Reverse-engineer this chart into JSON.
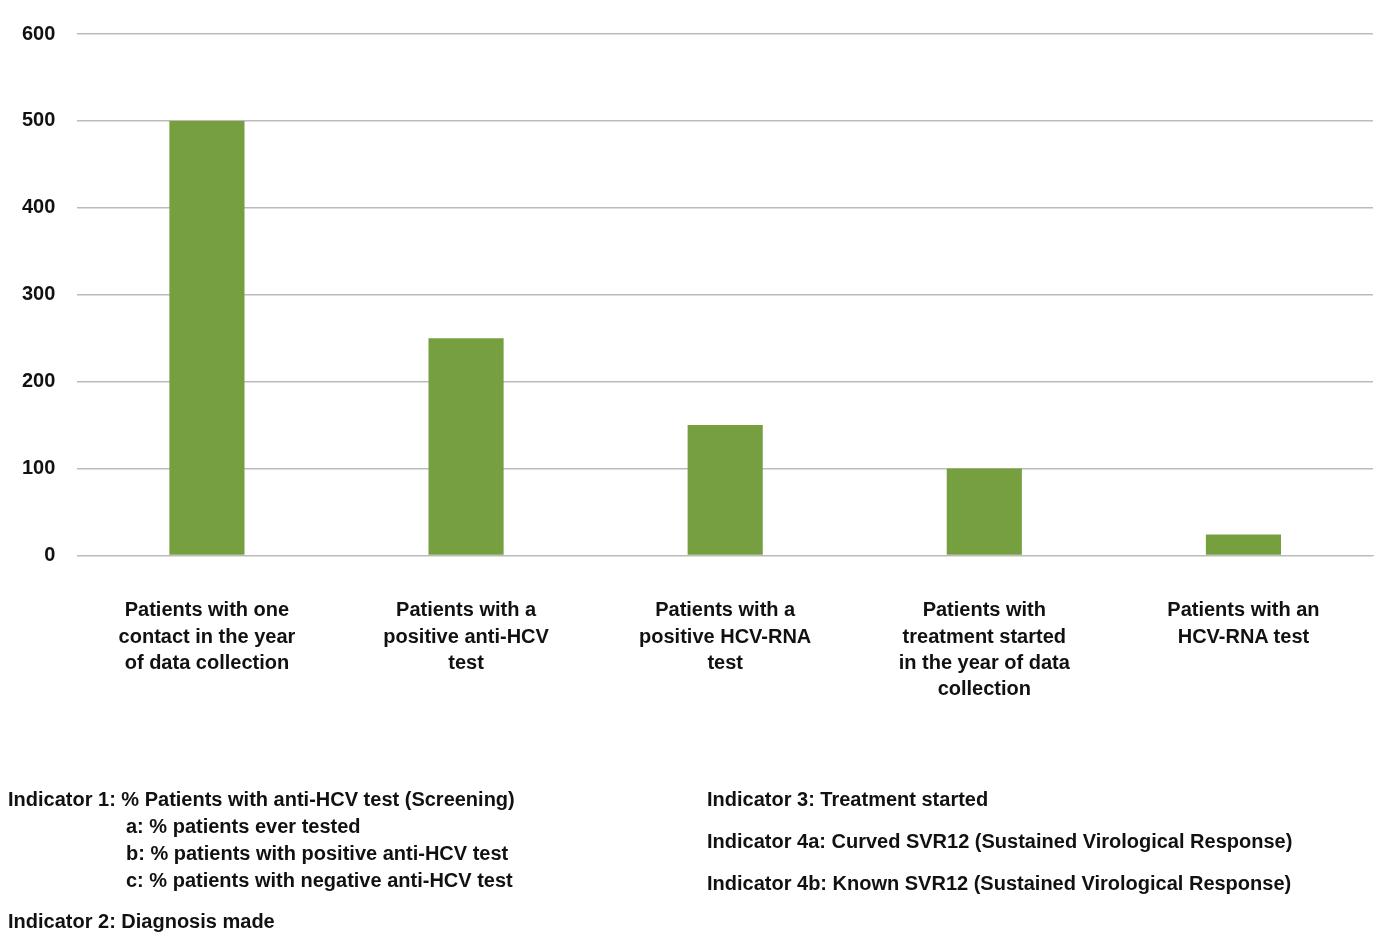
{
  "chart_data": {
    "type": "bar",
    "categories": [
      "Patients with one contact in the year of data collection",
      "Patients with a positive anti-HCV test",
      "Patients with a positive HCV-RNA test",
      "Patients with treatment started in the year of data collection",
      "Patients with an HCV-RNA test"
    ],
    "values": [
      500,
      250,
      150,
      100,
      24
    ],
    "color": "#76a040",
    "ylim": [
      0,
      600
    ],
    "yticks": [
      0,
      100,
      200,
      300,
      400,
      500,
      600
    ],
    "grid": "y",
    "annotations": [
      "Indicator 1: % Patients with anti-HCV test (Screening)",
      "a: % patients ever tested",
      "b: % patients with positive anti-HCV test",
      "c: % patients with negative anti-HCV test",
      "Indicator 2: Diagnosis made",
      "Indicator 3: Treatment started",
      "Indicator 4a: Curved SVR12 (Sustained Virological Response)",
      "Indicator 4b: Known SVR12 (Sustained Virological Response)"
    ]
  }
}
